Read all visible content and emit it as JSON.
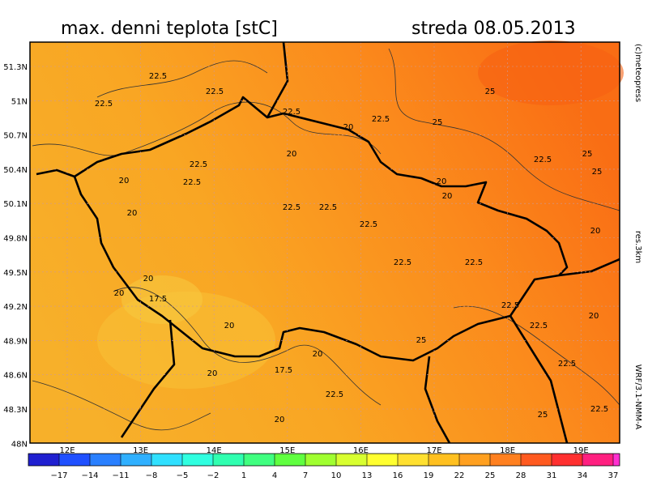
{
  "header": {
    "title": "max. denni teplota [stC]",
    "date": "streda 08.05.2013"
  },
  "map": {
    "lat_labels": [
      "51.3N",
      "51N",
      "50.7N",
      "50.4N",
      "50.1N",
      "49.8N",
      "49.5N",
      "49.2N",
      "48.9N",
      "48.6N",
      "48.3N",
      "48N"
    ],
    "lon_labels": [
      "12E",
      "13E",
      "14E",
      "15E",
      "16E",
      "17E",
      "18E",
      "19E"
    ],
    "contour_labels": [
      "22.5",
      "22.5",
      "22.5",
      "22.5",
      "25",
      "25",
      "20",
      "22.5",
      "25",
      "25",
      "22.5",
      "22.5",
      "22.5",
      "20",
      "20",
      "20",
      "22.5",
      "22.5",
      "22.5",
      "22.5",
      "22.5",
      "20",
      "20",
      "20",
      "17.5",
      "20",
      "20",
      "22.5",
      "22.5",
      "20",
      "25",
      "20",
      "17.5",
      "20",
      "22.5",
      "20",
      "25",
      "22.5",
      "22.5",
      "20"
    ],
    "side_texts": [
      "(c)meteopress",
      "res.3km",
      "WRF/3.1-NMM-A"
    ]
  },
  "colorbar": {
    "labels": [
      "−17",
      "−14",
      "−11",
      "−8",
      "−5",
      "−2",
      "1",
      "4",
      "7",
      "10",
      "13",
      "16",
      "19",
      "22",
      "25",
      "28",
      "31",
      "34",
      "37"
    ]
  }
}
